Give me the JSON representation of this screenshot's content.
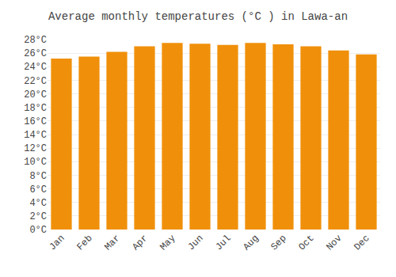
{
  "chart_data": {
    "type": "bar",
    "title": "Average monthly temperatures (°C ) in Lawa-an",
    "categories": [
      "Jan",
      "Feb",
      "Mar",
      "Apr",
      "May",
      "Jun",
      "Jul",
      "Aug",
      "Sep",
      "Oct",
      "Nov",
      "Dec"
    ],
    "values": [
      25.2,
      25.5,
      26.2,
      27.0,
      27.5,
      27.4,
      27.2,
      27.5,
      27.3,
      27.0,
      26.4,
      25.8
    ],
    "color": "#F0900A",
    "ylim": [
      0,
      28
    ],
    "yticks": [
      {
        "value": 0,
        "label": "0°C"
      },
      {
        "value": 2,
        "label": "2°C"
      },
      {
        "value": 4,
        "label": "4°C"
      },
      {
        "value": 6,
        "label": "6°C"
      },
      {
        "value": 8,
        "label": "8°C"
      },
      {
        "value": 10,
        "label": "10°C"
      },
      {
        "value": 12,
        "label": "12°C"
      },
      {
        "value": 14,
        "label": "14°C"
      },
      {
        "value": 16,
        "label": "16°C"
      },
      {
        "value": 18,
        "label": "18°C"
      },
      {
        "value": 20,
        "label": "20°C"
      },
      {
        "value": 22,
        "label": "22°C"
      },
      {
        "value": 24,
        "label": "24°C"
      },
      {
        "value": 26,
        "label": "26°C"
      },
      {
        "value": 28,
        "label": "28°C"
      }
    ],
    "grid": true
  }
}
